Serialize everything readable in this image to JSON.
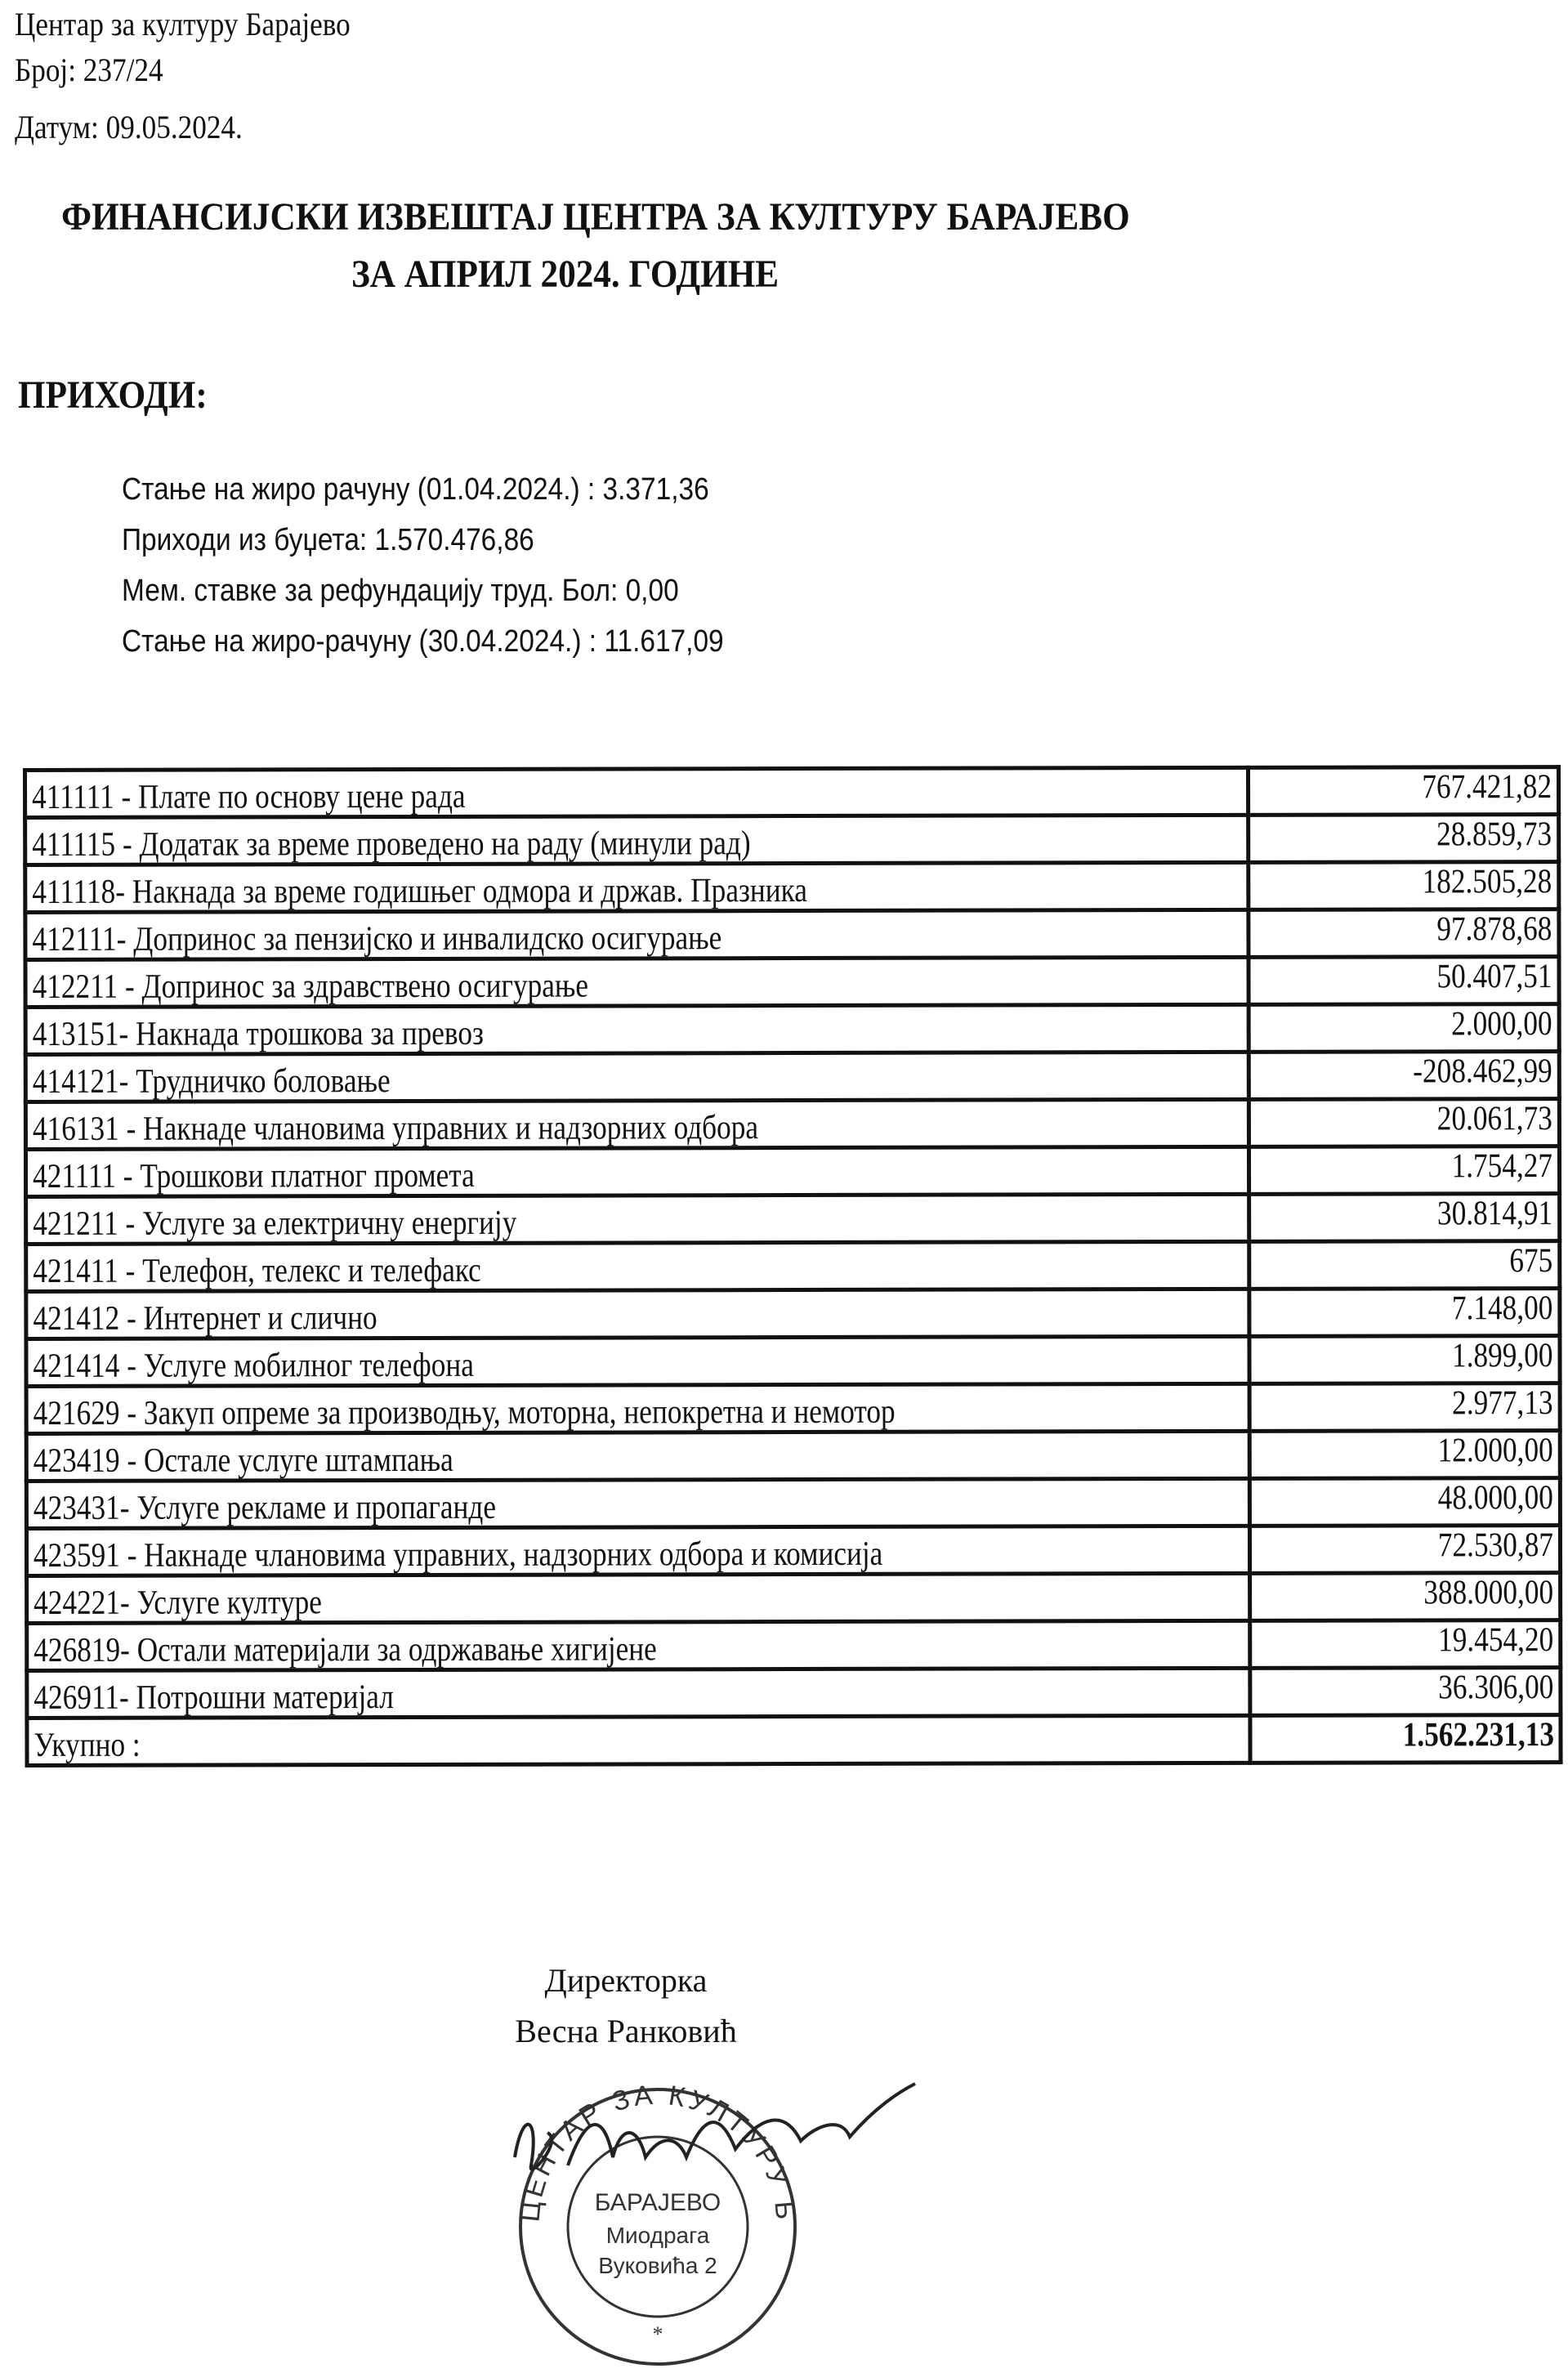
{
  "header": {
    "organization": "Центар за културу Барајево",
    "number": "Број: 237/24",
    "date": "Датум: 09.05.2024."
  },
  "title": {
    "line1": "ФИНАНСИЈСКИ ИЗВЕШТАЈ ЦЕНТРА ЗА КУЛТУРУ БАРАЈЕВО",
    "line2": "ЗА АПРИЛ 2024. ГОДИНЕ"
  },
  "income": {
    "heading": "ПРИХОДИ:",
    "lines": [
      "Стање на жиро рачуну  (01.04.2024.) : 3.371,36",
      "Приходи из буџета:  1.570.476,86",
      "Мем. ставке за рефундацију труд. Бол: 0,00",
      "Стање на жиро-рачуну (30.04.2024.) : 11.617,09"
    ]
  },
  "table": {
    "rows": [
      {
        "label": "411111 - Плате по основу цене рада",
        "value": "767.421,82"
      },
      {
        "label": "411115 - Додатак за време проведено на раду (минули рад)",
        "value": "28.859,73"
      },
      {
        "label": "411118- Накнада за време годишњег одмора и држав. Празника",
        "value": "182.505,28"
      },
      {
        "label": "412111- Допринос за пензијско и инвалидско осигурање",
        "value": "97.878,68"
      },
      {
        "label": "412211 - Допринос за здравствено осигурање",
        "value": "50.407,51"
      },
      {
        "label": "413151- Накнада трошкова за превоз",
        "value": "2.000,00"
      },
      {
        "label": "414121- Трудничко боловање",
        "value": "-208.462,99"
      },
      {
        "label": "416131 - Накнаде члановима управних и надзорних одбора",
        "value": "20.061,73"
      },
      {
        "label": "421111 - Трошкови платног промета",
        "value": "1.754,27"
      },
      {
        "label": "421211 - Услуге за електричну енергију",
        "value": "30.814,91"
      },
      {
        "label": "421411 - Телефон, телекс и телефакс",
        "value": "675"
      },
      {
        "label": "421412 - Интернет и слично",
        "value": "7.148,00"
      },
      {
        "label": "421414 - Услуге мобилног телефона",
        "value": "1.899,00"
      },
      {
        "label": "421629 - Закуп опреме за производњу, моторна, непокретна и немотор",
        "value": "2.977,13"
      },
      {
        "label": "423419 - Остале услуге штампања",
        "value": "12.000,00"
      },
      {
        "label": "423431- Услуге рекламе и пропаганде",
        "value": "48.000,00"
      },
      {
        "label": "423591 - Накнаде члановима управних, надзорних одбора и комисија",
        "value": "72.530,87"
      },
      {
        "label": "424221- Услуге културе",
        "value": "388.000,00"
      },
      {
        "label": "426819- Остали материјали за одржавање хигијене",
        "value": "19.454,20"
      },
      {
        "label": "426911- Потрошни материјал",
        "value": "36.306,00"
      }
    ],
    "total": {
      "label": "Укупно :",
      "value": "1.562.231,13"
    }
  },
  "signature": {
    "role": "Директорка",
    "name": "Весна Ранковић"
  },
  "stamp": {
    "ring_text": "ЦЕНТАР ЗА КУЛТУРУ БАРАЈЕВО",
    "inner_line1": "БАРАЈЕВО",
    "inner_line2": "Миодрага",
    "inner_line3": "Вуковића 2"
  }
}
